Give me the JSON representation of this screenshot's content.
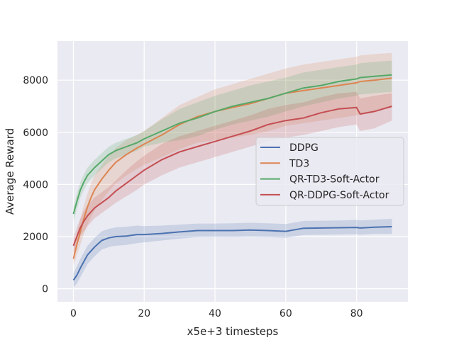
{
  "chart_data": {
    "type": "line",
    "title": "",
    "xlabel": "x5e+3 timesteps",
    "ylabel": "Average Reward",
    "xlim": [
      -4.5,
      94.5
    ],
    "ylim": [
      -500,
      9500
    ],
    "xticks": [
      0,
      20,
      40,
      60,
      80
    ],
    "yticks": [
      0,
      2000,
      4000,
      6000,
      8000
    ],
    "grid": true,
    "legend_position": "center-right",
    "background": "#eaeaf2",
    "x": [
      0,
      1,
      2,
      3,
      4,
      5,
      6,
      8,
      10,
      12,
      15,
      18,
      20,
      25,
      30,
      35,
      40,
      45,
      50,
      55,
      60,
      65,
      70,
      75,
      80,
      81,
      85,
      90
    ],
    "series": [
      {
        "name": "DDPG",
        "color": "#4c72b0",
        "values": [
          330,
          520,
          800,
          1050,
          1300,
          1450,
          1600,
          1850,
          1950,
          2000,
          2020,
          2080,
          2080,
          2120,
          2180,
          2230,
          2230,
          2230,
          2250,
          2230,
          2200,
          2320,
          2330,
          2340,
          2350,
          2330,
          2360,
          2380
        ],
        "lower": [
          50,
          200,
          450,
          700,
          950,
          1100,
          1250,
          1500,
          1600,
          1650,
          1680,
          1750,
          1780,
          1850,
          1920,
          1980,
          1990,
          1980,
          2000,
          1980,
          1950,
          2060,
          2070,
          2080,
          2090,
          2070,
          2100,
          2100
        ],
        "upper": [
          600,
          850,
          1150,
          1400,
          1650,
          1800,
          1950,
          2200,
          2300,
          2350,
          2380,
          2420,
          2400,
          2420,
          2460,
          2500,
          2500,
          2510,
          2530,
          2510,
          2480,
          2600,
          2610,
          2620,
          2640,
          2620,
          2650,
          2680
        ]
      },
      {
        "name": "TD3",
        "color": "#dd8452",
        "values": [
          1150,
          1700,
          2200,
          2700,
          3150,
          3500,
          3800,
          4200,
          4550,
          4850,
          5150,
          5400,
          5550,
          5900,
          6300,
          6600,
          6800,
          6950,
          7100,
          7300,
          7500,
          7600,
          7700,
          7800,
          7900,
          7950,
          8000,
          8080
        ],
        "lower": [
          900,
          1300,
          1700,
          2100,
          2450,
          2750,
          3000,
          3400,
          3750,
          4050,
          4350,
          4600,
          4750,
          5050,
          5350,
          5600,
          5700,
          5800,
          5900,
          6050,
          6250,
          6350,
          6450,
          6550,
          6650,
          6700,
          6800,
          6950
        ],
        "upper": [
          1450,
          2100,
          2700,
          3200,
          3650,
          4050,
          4350,
          4750,
          5100,
          5400,
          5700,
          5900,
          6050,
          6550,
          7050,
          7350,
          7650,
          7850,
          8050,
          8250,
          8450,
          8600,
          8700,
          8800,
          8900,
          8950,
          9000,
          9050
        ]
      },
      {
        "name": "QR-TD3-Soft-Actor",
        "color": "#55a868",
        "values": [
          2870,
          3350,
          3800,
          4100,
          4350,
          4500,
          4650,
          4900,
          5150,
          5300,
          5450,
          5600,
          5750,
          6050,
          6350,
          6550,
          6800,
          7000,
          7150,
          7300,
          7500,
          7700,
          7800,
          7950,
          8050,
          8100,
          8150,
          8200
        ],
        "lower": [
          2600,
          3050,
          3500,
          3800,
          4050,
          4200,
          4350,
          4600,
          4850,
          5000,
          5150,
          5300,
          5450,
          5600,
          5700,
          5850,
          6100,
          6300,
          6450,
          6600,
          6800,
          7000,
          7150,
          7300,
          7400,
          7450,
          7500,
          7550
        ],
        "upper": [
          3150,
          3650,
          4100,
          4400,
          4650,
          4800,
          4950,
          5200,
          5450,
          5600,
          5750,
          5900,
          6050,
          6500,
          6900,
          7150,
          7400,
          7600,
          7800,
          7950,
          8100,
          8300,
          8400,
          8500,
          8600,
          8650,
          8700,
          8750
        ]
      },
      {
        "name": "QR-DDPG-Soft-Actor",
        "color": "#c44e52",
        "values": [
          1650,
          2000,
          2350,
          2600,
          2800,
          2950,
          3100,
          3300,
          3500,
          3750,
          4050,
          4350,
          4550,
          4950,
          5250,
          5450,
          5650,
          5850,
          6050,
          6300,
          6450,
          6550,
          6750,
          6900,
          6950,
          6700,
          6800,
          7000
        ],
        "lower": [
          1400,
          1700,
          2000,
          2200,
          2400,
          2550,
          2700,
          2900,
          3100,
          3300,
          3550,
          3800,
          4000,
          4350,
          4650,
          4850,
          5050,
          5250,
          5450,
          5650,
          5800,
          5900,
          6050,
          6200,
          6300,
          6050,
          6150,
          6450
        ],
        "upper": [
          1950,
          2350,
          2700,
          3000,
          3200,
          3350,
          3500,
          3700,
          3900,
          4150,
          4550,
          4900,
          5100,
          5550,
          5850,
          6050,
          6250,
          6450,
          6650,
          6900,
          7050,
          7150,
          7350,
          7500,
          7550,
          7300,
          7400,
          7500
        ]
      }
    ]
  }
}
